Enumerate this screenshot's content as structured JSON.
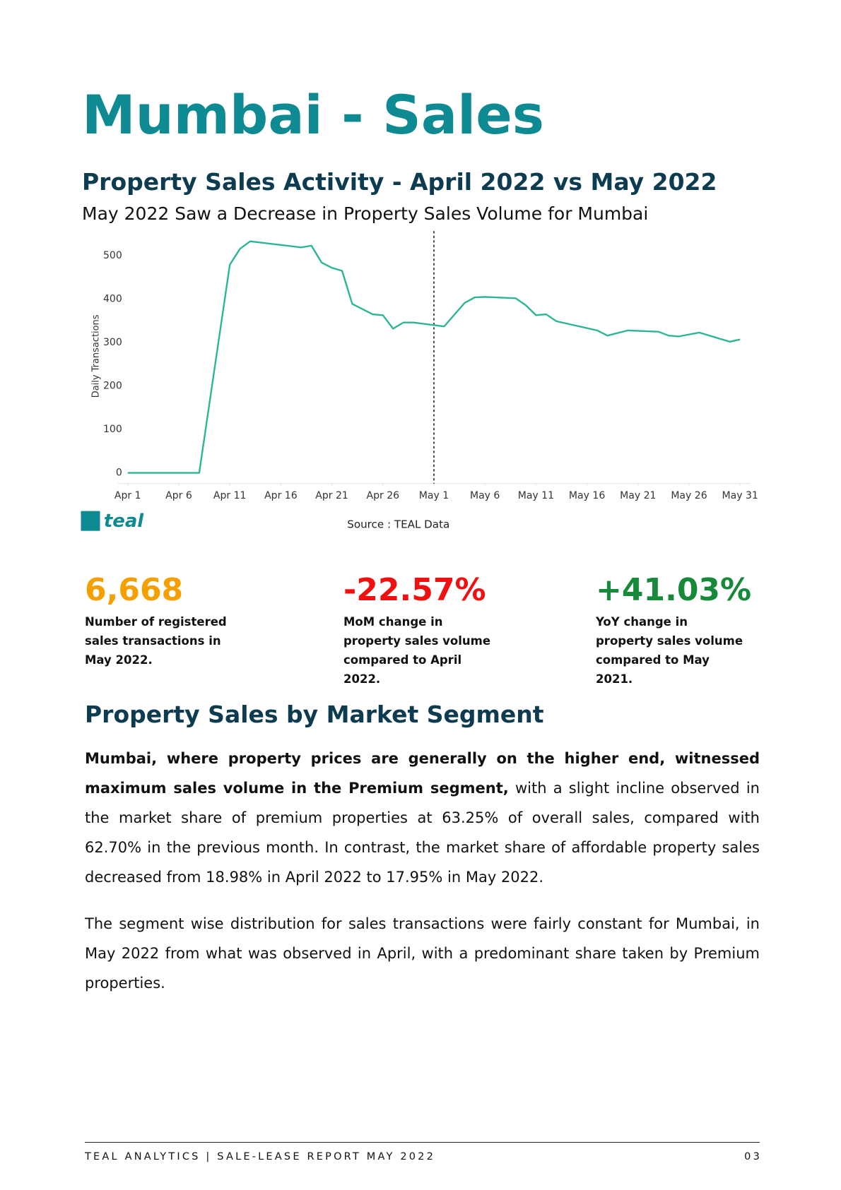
{
  "header": {
    "title": "Mumbai - Sales"
  },
  "section1": {
    "heading": "Property Sales Activity - April 2022 vs May 2022",
    "subheading": "May 2022 Saw a Decrease in Property Sales Volume for Mumbai",
    "source": "Source : TEAL Data",
    "logo": "teal"
  },
  "chart_data": {
    "type": "line",
    "ylabel": "Daily Transactions",
    "color": "#2bb594",
    "x": [
      "Apr 1",
      "Apr 8",
      "Apr 11",
      "Apr 12",
      "Apr 13",
      "Apr 18",
      "Apr 19",
      "Apr 20",
      "Apr 21",
      "Apr 22",
      "Apr 23",
      "Apr 25",
      "Apr 26",
      "Apr 27",
      "Apr 28",
      "Apr 29",
      "May 2",
      "May 4",
      "May 5",
      "May 6",
      "May 9",
      "May 10",
      "May 11",
      "May 12",
      "May 13",
      "May 17",
      "May 18",
      "May 20",
      "May 23",
      "May 24",
      "May 25",
      "May 27",
      "May 30",
      "May 31"
    ],
    "values": [
      0,
      0,
      479,
      516,
      533,
      519,
      523,
      484,
      472,
      465,
      389,
      365,
      363,
      332,
      346,
      346,
      337,
      391,
      404,
      405,
      402,
      386,
      363,
      365,
      349,
      328,
      316,
      328,
      325,
      316,
      314,
      323,
      302,
      307
    ],
    "xlim": [
      "Mar 31",
      "Jun 1"
    ],
    "xticks": [
      "Apr 1",
      "Apr 6",
      "Apr 11",
      "Apr 16",
      "Apr 21",
      "Apr 26",
      "May 1",
      "May 6",
      "May 11",
      "May 16",
      "May 21",
      "May 26",
      "May 31"
    ],
    "ylim": [
      0,
      560
    ],
    "yticks": [
      0,
      100,
      200,
      300,
      400,
      500
    ],
    "vline": "May 1"
  },
  "stats": [
    {
      "value": "6,668",
      "color": "#f5a000",
      "description": "Number of registered sales transactions in May 2022."
    },
    {
      "value": "-22.57%",
      "color": "#f01010",
      "description": "MoM change in property sales volume compared to April 2022."
    },
    {
      "value": "+41.03%",
      "color": "#178a3a",
      "description": "YoY change in property sales volume compared to May 2021."
    }
  ],
  "section2": {
    "heading": "Property Sales by Market Segment",
    "paragraphs": [
      {
        "bold": "Mumbai, where property prices are generally on the higher end, witnessed maximum sales volume in the Premium segment,",
        "text": "with a slight incline observed in the market share of premium properties at 63.25% of overall sales, compared with 62.70% in the previous month. In contrast, the market share of affordable property sales decreased from 18.98% in April 2022 to 17.95% in May 2022."
      },
      {
        "text": "The segment wise distribution for sales transactions were fairly constant for Mumbai, in May 2022 from what was observed in April, with a predominant share taken by Premium properties."
      }
    ]
  },
  "footer": {
    "left": "TEAL ANALYTICS | SALE-LEASE REPORT MAY 2022",
    "right": "03"
  }
}
